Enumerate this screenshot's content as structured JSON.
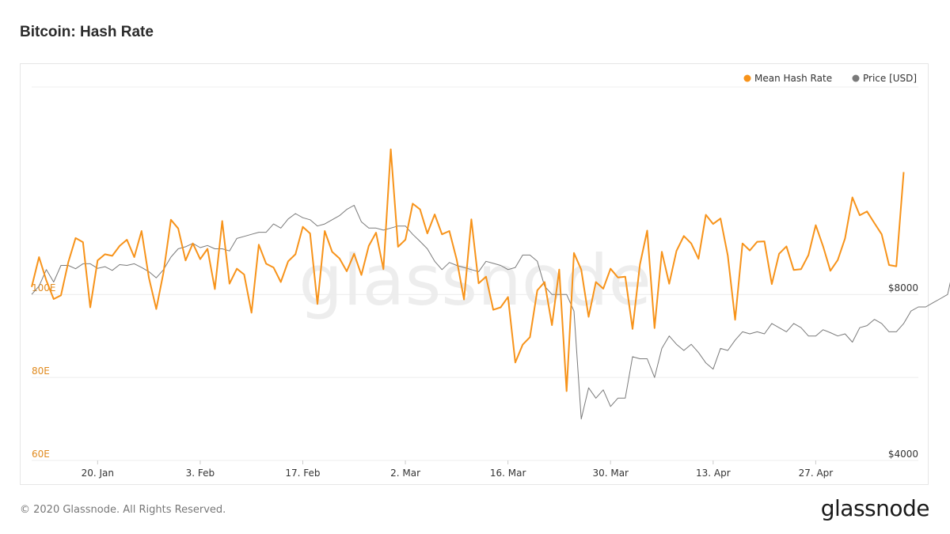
{
  "title": "Bitcoin: Hash Rate",
  "footer": {
    "copyright": "© 2020 Glassnode. All Rights Reserved.",
    "logo": "glassnode"
  },
  "watermark": "glassnode",
  "colors": {
    "hash_rate": "#f7931a",
    "price": "#7a7a7a",
    "left_axis": "#e08a1e"
  },
  "chart_data": {
    "type": "line",
    "x_ticks": [
      "20. Jan",
      "3. Feb",
      "17. Feb",
      "2. Mar",
      "16. Mar",
      "30. Mar",
      "13. Apr",
      "27. Apr"
    ],
    "x_tick_days": [
      19,
      33,
      47,
      61,
      75,
      89,
      103,
      117
    ],
    "x_range": [
      10,
      131
    ],
    "y_left": {
      "ticks": [
        60,
        80,
        100
      ],
      "tick_labels": [
        "60E",
        "80E",
        "100E"
      ],
      "range": [
        60,
        150
      ]
    },
    "y_right": {
      "ticks": [
        4000,
        8000
      ],
      "tick_labels": [
        "$4000",
        "$8000"
      ],
      "range": [
        4000,
        13000
      ]
    },
    "legend_position": "top-right",
    "grid": true,
    "series": [
      {
        "name": "Mean Hash Rate",
        "axis": "left",
        "start_day": 10,
        "values": [
          101.8,
          109.0,
          103.4,
          98.9,
          99.8,
          107.8,
          113.6,
          112.6,
          96.9,
          108.2,
          109.7,
          109.3,
          111.7,
          113.2,
          109.0,
          115.3,
          104.0,
          96.5,
          105.4,
          118.0,
          115.9,
          108.2,
          112.3,
          108.5,
          111.0,
          101.3,
          117.7,
          102.6,
          106.2,
          104.8,
          95.6,
          112.0,
          107.4,
          106.5,
          103.0,
          108.0,
          109.7,
          116.3,
          114.7,
          97.7,
          115.3,
          110.3,
          108.7,
          105.6,
          109.8,
          104.7,
          111.7,
          114.9,
          106.1,
          135.0,
          111.5,
          113.2,
          121.9,
          120.5,
          114.7,
          119.3,
          114.5,
          115.3,
          108.4,
          98.8,
          118.1,
          102.7,
          104.3,
          96.3,
          96.9,
          99.4,
          83.6,
          87.9,
          89.7,
          101.0,
          103.0,
          92.6,
          106.0,
          76.7,
          110.0,
          106.0,
          94.6,
          103.0,
          101.4,
          106.2,
          104.1,
          104.3,
          91.7,
          107.2,
          115.4,
          91.9,
          110.3,
          102.6,
          110.5,
          114.1,
          112.3,
          108.6,
          119.2,
          117.0,
          118.3,
          109.4,
          93.9,
          112.3,
          110.6,
          112.7,
          112.8,
          102.5,
          109.8,
          111.6,
          105.9,
          106.1,
          109.5,
          116.7,
          111.6,
          105.7,
          108.3,
          113.5,
          123.4,
          119.1,
          120.0,
          117.2,
          114.5,
          107.1,
          106.8,
          129.5
        ]
      },
      {
        "name": "Price [USD]",
        "axis": "right",
        "start_day": 10,
        "values": [
          8000,
          8200,
          8600,
          8300,
          8700,
          8700,
          8620,
          8740,
          8740,
          8630,
          8670,
          8580,
          8720,
          8700,
          8740,
          8650,
          8550,
          8400,
          8600,
          8900,
          9100,
          9150,
          9230,
          9130,
          9180,
          9100,
          9100,
          9050,
          9350,
          9400,
          9450,
          9500,
          9500,
          9700,
          9600,
          9820,
          9950,
          9850,
          9800,
          9650,
          9700,
          9800,
          9900,
          10050,
          10150,
          9750,
          9600,
          9600,
          9550,
          9600,
          9650,
          9650,
          9450,
          9280,
          9100,
          8800,
          8600,
          8770,
          8700,
          8650,
          8600,
          8550,
          8800,
          8750,
          8700,
          8600,
          8650,
          8950,
          8950,
          8800,
          8200,
          8000,
          8000,
          8000,
          7600,
          5000,
          5750,
          5500,
          5700,
          5300,
          5500,
          5500,
          6500,
          6450,
          6450,
          6000,
          6700,
          7000,
          6800,
          6650,
          6800,
          6600,
          6350,
          6200,
          6700,
          6650,
          6900,
          7100,
          7050,
          7100,
          7050,
          7300,
          7200,
          7100,
          7300,
          7200,
          7000,
          7000,
          7150,
          7080,
          7000,
          7050,
          6850,
          7200,
          7250,
          7400,
          7300,
          7100,
          7100,
          7300,
          7600,
          7700,
          7700,
          7800,
          7900,
          8000,
          8800,
          8700,
          8850,
          8800,
          8800,
          8900,
          9100,
          9700,
          9600,
          9400,
          8800
        ]
      }
    ]
  }
}
